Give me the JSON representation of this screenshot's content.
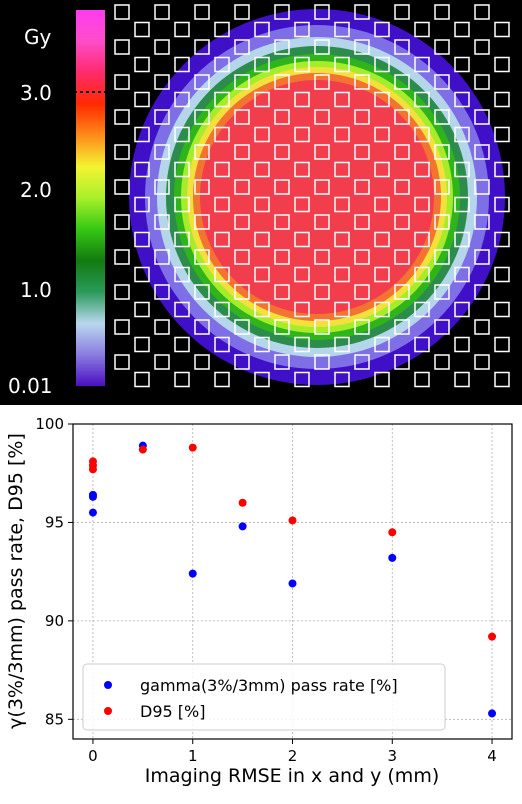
{
  "dose_map": {
    "colorbar_unit": "Gy",
    "colorbar_ticks": [
      "3.0",
      "2.0",
      "1.0",
      "0.01"
    ],
    "colorbar_stops": [
      "#4b0fc2",
      "#8a7de0",
      "#b8d8ec",
      "#2a9a5a",
      "#127a10",
      "#35c813",
      "#a8f02a",
      "#f4f432",
      "#ff8a1a",
      "#ff2a00",
      "#ff2a6a",
      "#ff4cc8",
      "#ff3cf0"
    ],
    "dose_ring_colors": [
      "#3f10c8",
      "#7f6fe6",
      "#b5d6ea",
      "#2c8c4c",
      "#2fb51b",
      "#a7ec2a",
      "#f2e03c",
      "#f27430",
      "#f23d4d"
    ]
  },
  "chart_data": {
    "type": "scatter",
    "xlabel": "Imaging RMSE in x and y (mm)",
    "ylabel": "γ(3%/3mm) pass rate, D95 [%]",
    "xlim": [
      -0.2,
      4.2
    ],
    "ylim": [
      84,
      100
    ],
    "xticks": [
      "0",
      "1",
      "2",
      "3",
      "4"
    ],
    "yticks": [
      "85",
      "90",
      "95",
      "100"
    ],
    "grid": true,
    "legend_position": "bottom-left",
    "series": [
      {
        "name": "gamma(3%/3mm) pass rate [%]",
        "color": "#0000ff",
        "points": [
          [
            0,
            96.3
          ],
          [
            0,
            96.4
          ],
          [
            0,
            95.5
          ],
          [
            0.5,
            98.9
          ],
          [
            1,
            92.4
          ],
          [
            1.5,
            94.8
          ],
          [
            2,
            91.9
          ],
          [
            3,
            93.2
          ],
          [
            4,
            85.3
          ]
        ]
      },
      {
        "name": "D95 [%]",
        "color": "#ff0000",
        "points": [
          [
            0,
            98.1
          ],
          [
            0,
            97.9
          ],
          [
            0,
            97.7
          ],
          [
            0.5,
            98.7
          ],
          [
            1,
            98.8
          ],
          [
            1.5,
            96.0
          ],
          [
            2,
            95.1
          ],
          [
            3,
            94.5
          ],
          [
            4,
            89.2
          ]
        ]
      }
    ]
  }
}
